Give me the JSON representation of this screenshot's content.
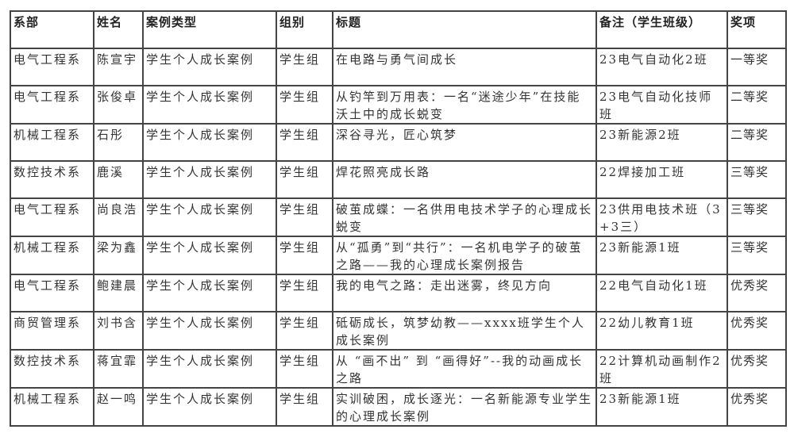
{
  "table": {
    "headers": [
      "系部",
      "姓名",
      "案例类型",
      "组别",
      "标题",
      "备注（学生班级）",
      "奖项"
    ],
    "rows": [
      [
        "电气工程系",
        "陈宣宇",
        "学生个人成长案例",
        "学生组",
        "在电路与勇气间成长",
        "23电气自动化2班",
        "一等奖"
      ],
      [
        "电气工程系",
        "张俊卓",
        "学生个人成长案例",
        "学生组",
        "从钓竿到万用表：一名“迷途少年”在技能沃土中的成长蜕变",
        "23电气自动化技师班",
        "二等奖"
      ],
      [
        "机械工程系",
        "石彤",
        "学生个人成长案例",
        "学生组",
        "深谷寻光，匠心筑梦",
        "23新能源2班",
        "二等奖"
      ],
      [
        "数控技术系",
        "鹿溪",
        "学生个人成长案例",
        "学生组",
        "焊花照亮成长路",
        "22焊接加工班",
        "三等奖"
      ],
      [
        "电气工程系",
        "尚良浩",
        "学生个人成长案例",
        "学生组",
        "破茧成蝶：一名供用电技术学子的心理成长蜕变",
        "23供用电技术班（3+3三）",
        "三等奖"
      ],
      [
        "机械工程系",
        "梁为鑫",
        "学生个人成长案例",
        "学生组",
        "从“孤勇”到“共行”：一名机电学子的破茧之路——我的心理成长案例报告",
        "23新能源1班",
        "三等奖"
      ],
      [
        "电气工程系",
        "鲍建晨",
        "学生个人成长案例",
        "学生组",
        "我的电气之路：走出迷雾，终见方向",
        "22电气自动化1班",
        "优秀奖"
      ],
      [
        "商贸管理系",
        "刘书含",
        "学生个人成长案例",
        "学生组",
        "砥砺成长，筑梦幼教——xxxx班学生个人成长案例",
        "22幼儿教育1班",
        "优秀奖"
      ],
      [
        "数控技术系",
        "蒋宜霏",
        "学生个人成长案例",
        "学生组",
        "从 “画不出” 到 “画得好”--我的动画成长之路",
        "22计算机动画制作2班",
        "优秀奖"
      ],
      [
        "机械工程系",
        "赵一鸣",
        "学生个人成长案例",
        "学生组",
        "实训破困，成长逐光：一名新能源专业学生的心理成长案例",
        "23新能源1班",
        "优秀奖"
      ]
    ]
  }
}
